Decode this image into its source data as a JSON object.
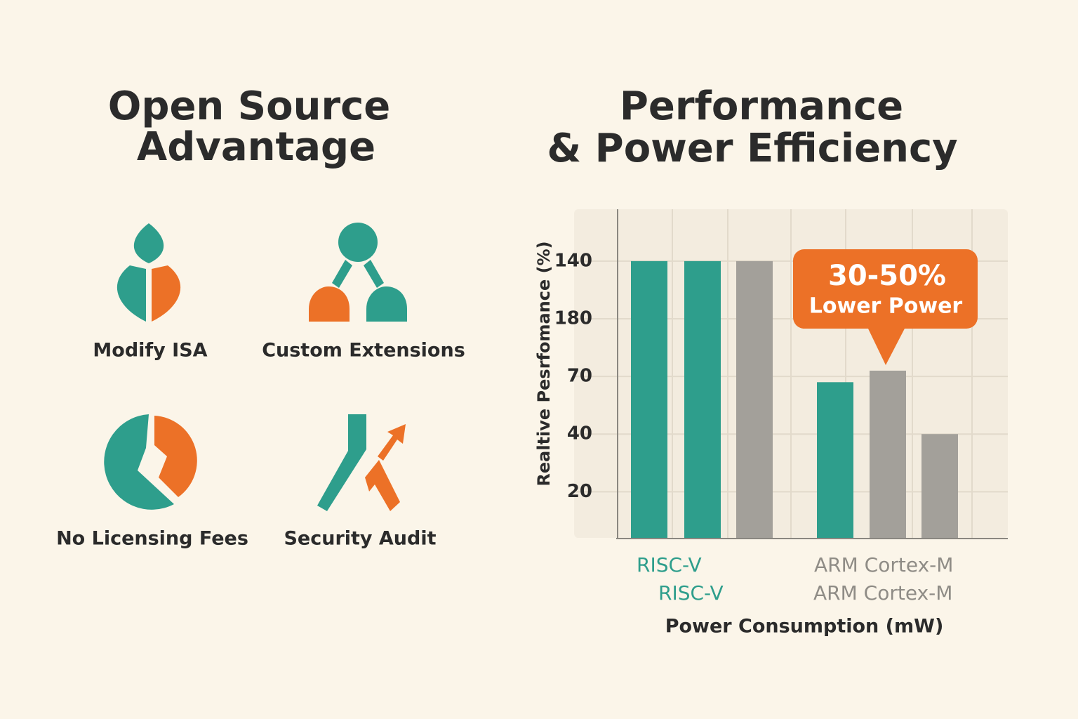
{
  "left_panel": {
    "title_lines": [
      "Open Source",
      "Advantage"
    ],
    "features": [
      {
        "label": "Modify ISA"
      },
      {
        "label": "Custom Extensions"
      },
      {
        "label": "No Licensing Fees"
      },
      {
        "label": "Security Audit"
      }
    ]
  },
  "chart_data": {
    "type": "bar",
    "title_lines": [
      "Performance",
      "& Power Efficiency"
    ],
    "y_label": "Realtive Pesrfomance (%)",
    "x_label": "Power Consumption (mW)",
    "values": [
      5,
      5,
      5,
      2.9,
      3.1,
      2
    ],
    "colors": [
      "#2e9e8c",
      "#2e9e8c",
      "#a3a09a",
      "#2e9e8c",
      "#a3a09a",
      "#a3a09a"
    ],
    "ylim": [
      0.2,
      5.9
    ],
    "yticks": [
      {
        "value": 1,
        "label": "20"
      },
      {
        "value": 2,
        "label": "40"
      },
      {
        "value": 3,
        "label": "70"
      },
      {
        "value": 4,
        "label": "180"
      },
      {
        "value": 5,
        "label": "140"
      }
    ],
    "grid": true,
    "group_labels": [
      {
        "text": "RISC-V",
        "color": "#2e9e8c"
      },
      {
        "text": "RISC-V",
        "color": "#2e9e8c"
      },
      {
        "text": "ARM Cortex-M",
        "color": "#8f8c86"
      },
      {
        "text": "ARM Cortex-M",
        "color": "#8f8c86"
      }
    ],
    "annotation": {
      "lines": [
        "30-50%",
        "Lower Power"
      ],
      "color": "#ec7127"
    }
  }
}
